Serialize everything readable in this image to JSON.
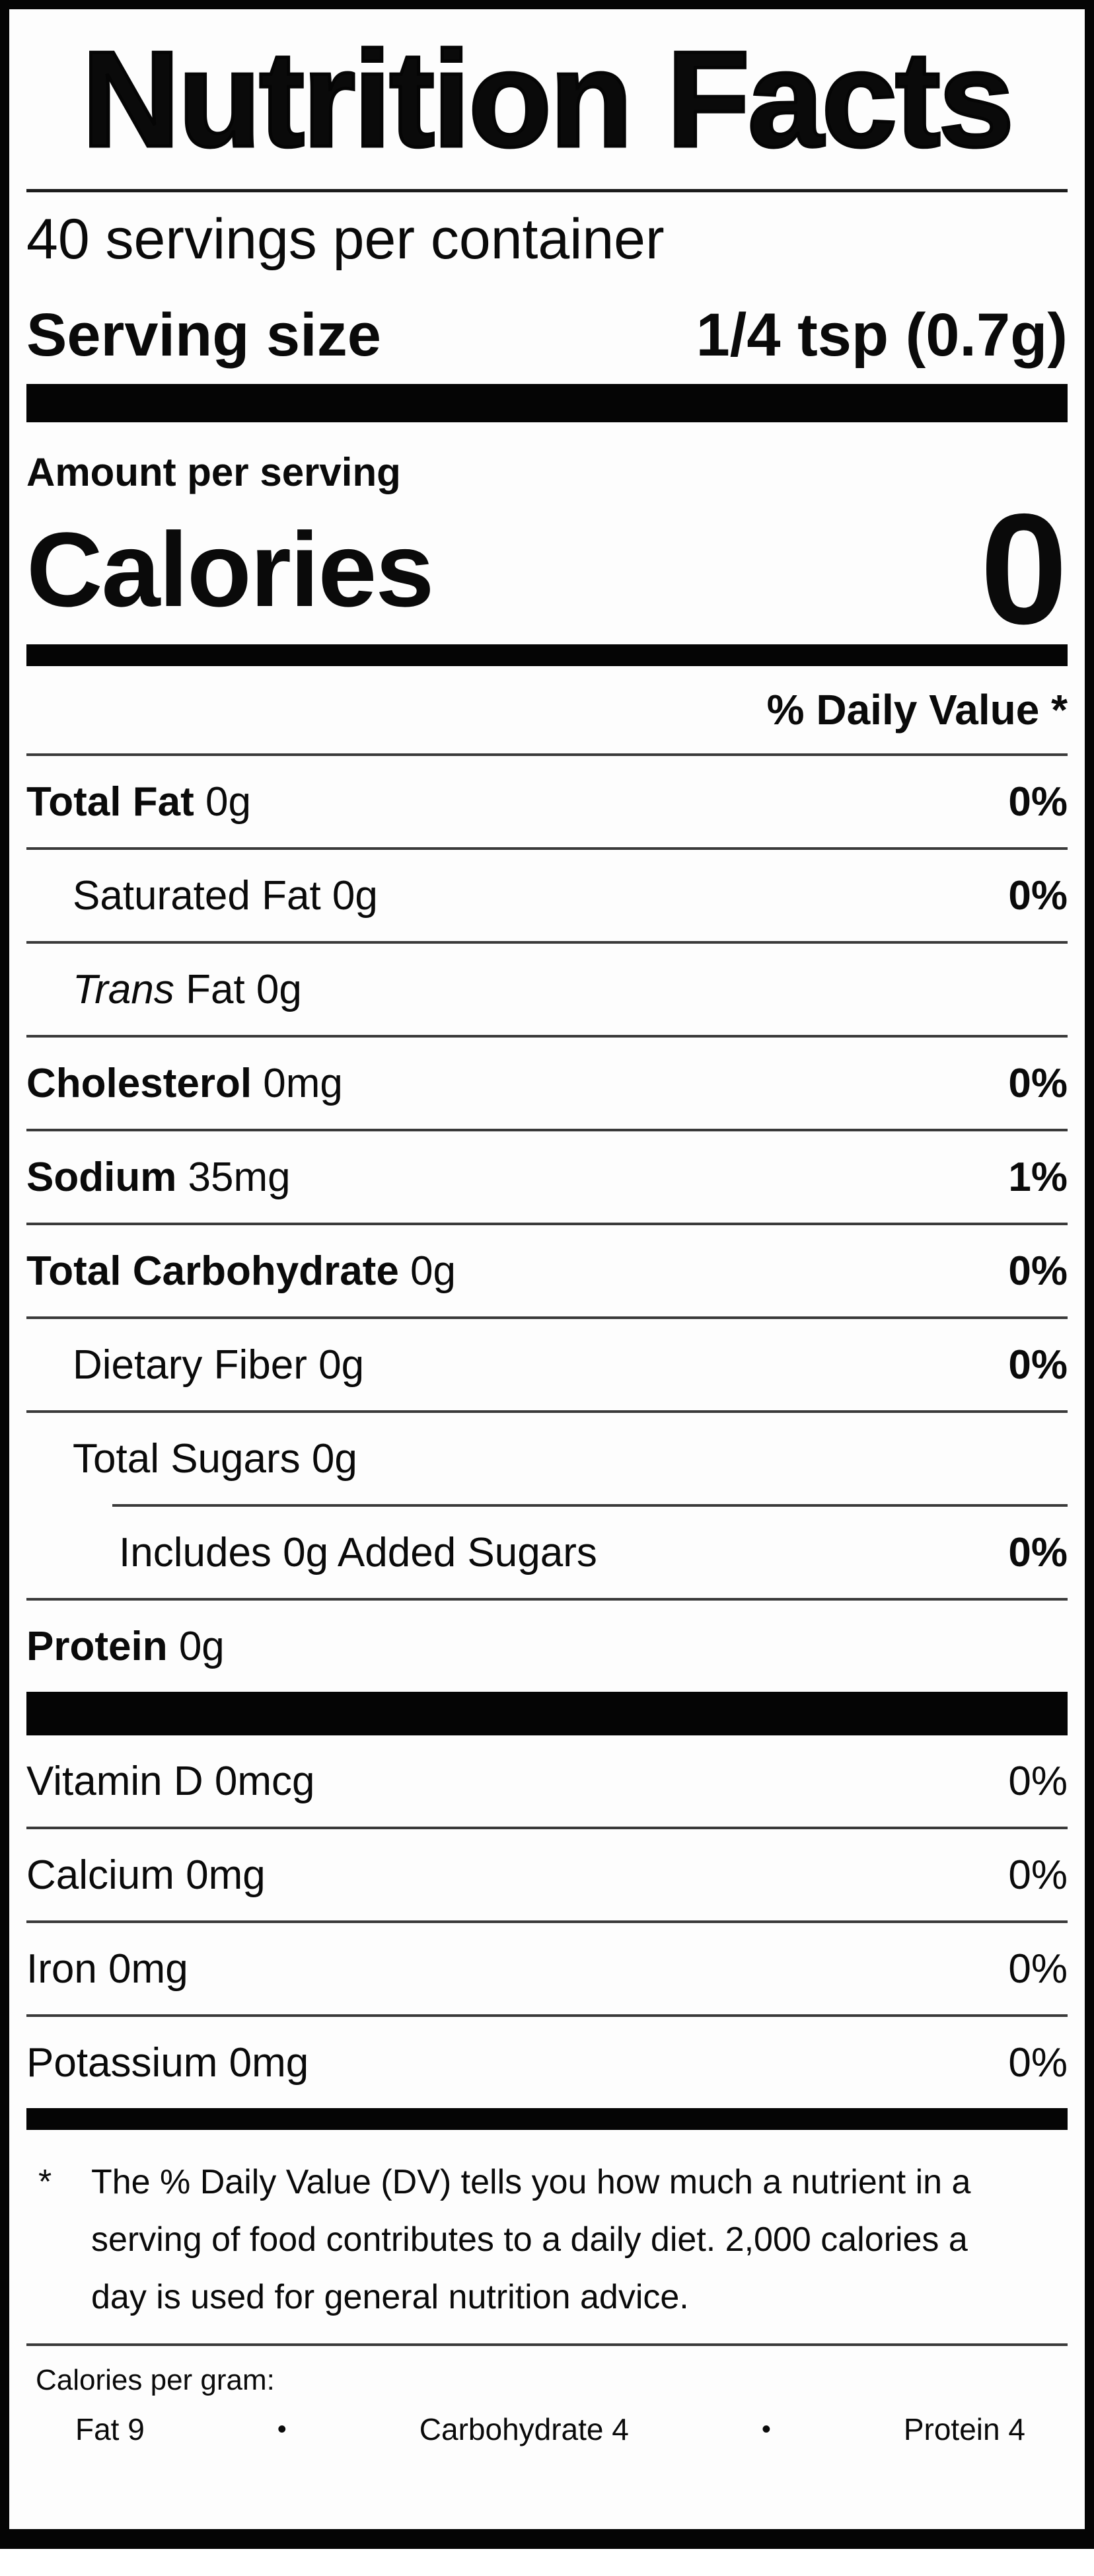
{
  "label": {
    "title": "Nutrition Facts",
    "servings_per_container": "40 servings per container",
    "serving_size_label": "Serving size",
    "serving_size_value": "1/4 tsp (0.7g)",
    "amount_per_serving": "Amount per serving",
    "calories_label": "Calories",
    "calories_value": "0",
    "daily_value_header": "% Daily Value *",
    "rows": [
      {
        "b": "Total Fat",
        "i": "",
        "r": " 0g",
        "dv": "0%"
      },
      {
        "b": "",
        "i": "",
        "r": "Saturated Fat 0g",
        "dv": "0%"
      },
      {
        "b": "",
        "i": "Trans",
        "r": " Fat 0g",
        "dv": ""
      },
      {
        "b": "Cholesterol",
        "i": "",
        "r": " 0mg",
        "dv": "0%"
      },
      {
        "b": "Sodium",
        "i": "",
        "r": " 35mg",
        "dv": "1%"
      },
      {
        "b": "Total Carbohydrate",
        "i": "",
        "r": " 0g",
        "dv": "0%"
      },
      {
        "b": "",
        "i": "",
        "r": "Dietary Fiber 0g",
        "dv": "0%"
      },
      {
        "b": "",
        "i": "",
        "r": "Total Sugars 0g",
        "dv": ""
      },
      {
        "b": "",
        "i": "",
        "r": "Includes 0g Added Sugars",
        "dv": "0%"
      },
      {
        "b": "Protein",
        "i": "",
        "r": " 0g",
        "dv": ""
      }
    ],
    "vitamins": [
      {
        "name": "Vitamin D 0mcg",
        "dv": "0%"
      },
      {
        "name": "Calcium 0mg",
        "dv": "0%"
      },
      {
        "name": "Iron 0mg",
        "dv": "0%"
      },
      {
        "name": "Potassium 0mg",
        "dv": "0%"
      }
    ],
    "footnote_symbol": "*",
    "footnote": "The % Daily Value (DV) tells you how much a nutrient in a serving of food contributes to a daily diet. 2,000 calories a day is used for general nutrition advice.",
    "calories_per_gram": {
      "heading": "Calories per gram:",
      "fat": "Fat 9",
      "bullet": "•",
      "carbohydrate": "Carbohydrate 4",
      "protein": "Protein 4"
    },
    "colors": {
      "ink": "#0a0a0a",
      "background": "#fdfdfd",
      "separator": "#3a3a3a"
    }
  }
}
